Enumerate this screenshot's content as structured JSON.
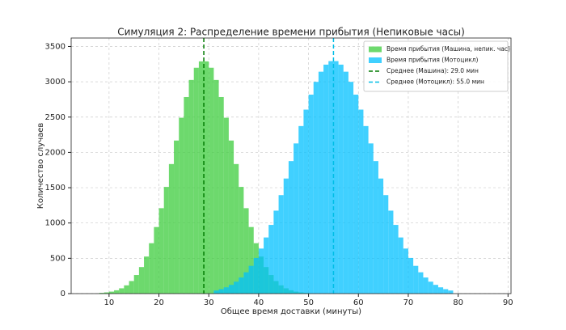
{
  "chart_data": {
    "type": "histogram",
    "title": "Симуляция 2: Распределение времени прибытия (Непиковые часы)",
    "xlabel": "Общее время доставки (минуты)",
    "ylabel": "Количество случаев",
    "xlim": [
      2.4,
      90.6
    ],
    "ylim": [
      0,
      3620
    ],
    "xticks": [
      10,
      20,
      30,
      40,
      50,
      60,
      70,
      80,
      90
    ],
    "yticks": [
      0,
      500,
      1000,
      1500,
      2000,
      2500,
      3000,
      3500
    ],
    "grid": true,
    "legend": "upper right",
    "series": [
      {
        "name": "Время прибытия (Машина, непик. час)",
        "color": "#3ccc3c",
        "bins": [
          8,
          9,
          10,
          11,
          12,
          13,
          14,
          15,
          16,
          17,
          18,
          19,
          20,
          21,
          22,
          23,
          24,
          25,
          26,
          27,
          28,
          29,
          30,
          31,
          32,
          33,
          34,
          35,
          36,
          37,
          38,
          39,
          40,
          41,
          42,
          43,
          44,
          45,
          46,
          47,
          48,
          49,
          50
        ],
        "values": [
          10,
          17,
          28,
          47,
          75,
          117,
          178,
          263,
          376,
          525,
          714,
          943,
          1210,
          1511,
          1835,
          2168,
          2491,
          2784,
          3026,
          3199,
          3289,
          3289,
          3199,
          3026,
          2784,
          2491,
          2168,
          1835,
          1511,
          1210,
          943,
          714,
          525,
          376,
          263,
          178,
          117,
          75,
          47,
          28,
          17,
          10
        ]
      },
      {
        "name": "Время прибытия (Мотоцикл)",
        "color": "#00c0ff",
        "bins": [
          31,
          32,
          33,
          34,
          35,
          36,
          37,
          38,
          39,
          40,
          41,
          42,
          43,
          44,
          45,
          46,
          47,
          48,
          49,
          50,
          51,
          52,
          53,
          54,
          55,
          56,
          57,
          58,
          59,
          60,
          61,
          62,
          63,
          64,
          65,
          66,
          67,
          68,
          69,
          70,
          71,
          72,
          73,
          74,
          75,
          76,
          77,
          78,
          79
        ],
        "values": [
          44,
          63,
          89,
          124,
          169,
          228,
          302,
          393,
          505,
          638,
          795,
          973,
          1175,
          1395,
          1630,
          1877,
          2127,
          2373,
          2606,
          2818,
          2999,
          3143,
          3243,
          3293,
          3293,
          3243,
          3143,
          2999,
          2818,
          2606,
          2373,
          2127,
          1877,
          1630,
          1395,
          1175,
          973,
          795,
          638,
          505,
          393,
          302,
          228,
          169,
          124,
          89,
          63,
          44
        ]
      }
    ],
    "mean_lines": [
      {
        "name": "Среднее (Машина): 29.0 мин",
        "value": 29.0,
        "color": "#007a00"
      },
      {
        "name": "Среднее (Мотоцикл): 55.0 мин",
        "value": 55.0,
        "color": "#00bde6"
      }
    ]
  }
}
